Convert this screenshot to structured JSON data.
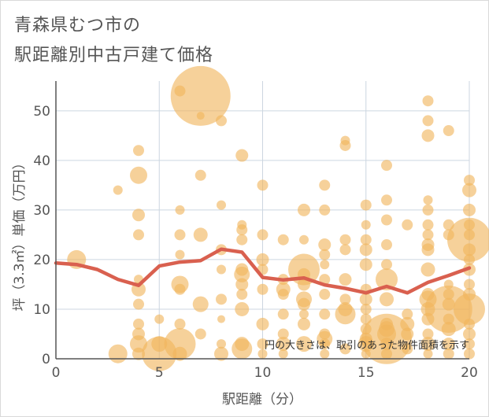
{
  "title_line1": "青森県むつ市の",
  "title_line2": "駅距離別中古戸建て価格",
  "note": "円の大きさは、取引のあった物件面積を示す",
  "colors": {
    "bubble": "#f0b45c",
    "line": "#d9604f",
    "grid": "#ccd6e0",
    "axis": "#555555"
  },
  "chart_data": {
    "type": "scatter",
    "xlabel": "駅距離（分）",
    "ylabel": "坪（3.3㎡）単価（万円）",
    "xlim": [
      0,
      20
    ],
    "ylim": [
      0,
      56
    ],
    "xticks": [
      0,
      5,
      10,
      15,
      20
    ],
    "yticks": [
      0,
      10,
      20,
      30,
      40,
      50
    ],
    "trend_line": {
      "x": [
        0,
        1,
        2,
        3,
        4,
        5,
        6,
        7,
        8,
        9,
        10,
        11,
        12,
        13,
        14,
        15,
        16,
        17,
        18,
        19,
        20
      ],
      "y": [
        19.3,
        19.0,
        18.0,
        16.0,
        14.8,
        18.7,
        19.5,
        19.8,
        22.1,
        21.5,
        16.4,
        15.9,
        16.3,
        14.9,
        14.2,
        13.3,
        14.6,
        13.3,
        15.4,
        16.8,
        18.3
      ]
    },
    "points": [
      [
        1,
        20,
        12
      ],
      [
        3,
        34,
        6
      ],
      [
        3,
        1,
        12
      ],
      [
        4,
        42,
        7
      ],
      [
        4,
        37,
        11
      ],
      [
        4,
        29,
        8
      ],
      [
        4,
        25,
        7
      ],
      [
        4,
        16,
        6
      ],
      [
        4,
        14,
        9
      ],
      [
        4,
        11,
        7
      ],
      [
        4,
        7,
        7
      ],
      [
        4,
        5,
        8
      ],
      [
        4,
        3,
        11
      ],
      [
        4,
        1,
        8
      ],
      [
        5,
        8,
        6
      ],
      [
        5,
        3,
        10
      ],
      [
        5,
        1,
        22
      ],
      [
        6,
        54,
        7
      ],
      [
        6,
        30,
        6
      ],
      [
        6,
        25,
        7
      ],
      [
        6,
        21,
        6
      ],
      [
        6,
        15,
        11
      ],
      [
        6,
        14,
        7
      ],
      [
        6,
        7,
        7
      ],
      [
        6,
        3,
        20
      ],
      [
        6,
        1,
        9
      ],
      [
        7,
        53,
        38
      ],
      [
        7,
        49,
        5
      ],
      [
        7,
        37,
        7
      ],
      [
        7,
        25,
        9
      ],
      [
        7,
        11,
        10
      ],
      [
        7,
        5,
        7
      ],
      [
        8,
        48,
        7
      ],
      [
        8,
        31,
        6
      ],
      [
        8,
        22,
        7
      ],
      [
        8,
        18,
        6
      ],
      [
        8,
        12,
        7
      ],
      [
        8,
        8,
        5
      ],
      [
        8,
        3,
        6
      ],
      [
        8,
        1,
        9
      ],
      [
        9,
        41,
        8
      ],
      [
        9,
        27,
        6
      ],
      [
        9,
        26,
        7
      ],
      [
        9,
        24,
        7
      ],
      [
        9,
        18,
        8
      ],
      [
        9,
        17,
        10
      ],
      [
        9,
        15,
        8
      ],
      [
        9,
        13,
        7
      ],
      [
        9,
        10,
        9
      ],
      [
        9,
        3,
        9
      ],
      [
        9,
        2,
        13
      ],
      [
        10,
        35,
        7
      ],
      [
        10,
        25,
        7
      ],
      [
        10,
        20,
        8
      ],
      [
        10,
        18,
        7
      ],
      [
        10,
        14,
        7
      ],
      [
        10,
        7,
        8
      ],
      [
        10,
        3,
        7
      ],
      [
        10,
        1,
        6
      ],
      [
        11,
        24,
        7
      ],
      [
        11,
        16,
        7
      ],
      [
        11,
        14,
        9
      ],
      [
        11,
        13,
        7
      ],
      [
        11,
        9,
        7
      ],
      [
        11,
        5,
        7
      ],
      [
        11,
        3,
        9
      ],
      [
        11,
        1,
        6
      ],
      [
        12,
        30,
        8
      ],
      [
        12,
        24,
        6
      ],
      [
        12,
        18,
        20
      ],
      [
        12,
        17,
        8
      ],
      [
        12,
        15,
        8
      ],
      [
        12,
        12,
        10
      ],
      [
        12,
        11,
        8
      ],
      [
        12,
        9,
        6
      ],
      [
        12,
        7,
        8
      ],
      [
        12,
        3,
        10
      ],
      [
        13,
        35,
        7
      ],
      [
        13,
        30,
        7
      ],
      [
        13,
        23,
        8
      ],
      [
        13,
        21,
        7
      ],
      [
        13,
        19,
        6
      ],
      [
        13,
        16,
        7
      ],
      [
        13,
        13,
        7
      ],
      [
        13,
        9,
        7
      ],
      [
        13,
        5,
        7
      ],
      [
        13,
        4,
        10
      ],
      [
        13,
        3,
        7
      ],
      [
        13,
        1,
        6
      ],
      [
        14,
        44,
        6
      ],
      [
        14,
        43,
        7
      ],
      [
        14,
        24,
        7
      ],
      [
        14,
        22,
        7
      ],
      [
        14,
        16,
        8
      ],
      [
        14,
        12,
        7
      ],
      [
        14,
        10,
        9
      ],
      [
        14,
        9,
        13
      ],
      [
        14,
        2,
        7
      ],
      [
        15,
        31,
        7
      ],
      [
        15,
        27,
        6
      ],
      [
        15,
        24,
        7
      ],
      [
        15,
        22,
        8
      ],
      [
        15,
        19,
        8
      ],
      [
        15,
        14,
        7
      ],
      [
        15,
        12,
        8
      ],
      [
        15,
        10,
        7
      ],
      [
        15,
        8,
        7
      ],
      [
        15,
        6,
        7
      ],
      [
        15,
        4,
        8
      ],
      [
        15,
        3,
        10
      ],
      [
        15,
        1,
        6
      ],
      [
        16,
        39,
        7
      ],
      [
        16,
        32,
        7
      ],
      [
        16,
        28,
        7
      ],
      [
        16,
        23,
        7
      ],
      [
        16,
        19,
        7
      ],
      [
        16,
        16,
        14
      ],
      [
        16,
        12,
        9
      ],
      [
        16,
        7,
        8
      ],
      [
        16,
        6,
        10
      ],
      [
        16,
        5,
        12
      ],
      [
        16,
        4,
        32
      ],
      [
        16,
        3,
        8
      ],
      [
        16,
        1,
        7
      ],
      [
        17,
        27,
        7
      ],
      [
        17,
        9,
        7
      ],
      [
        17,
        7,
        9
      ],
      [
        17,
        5,
        8
      ],
      [
        17,
        2,
        7
      ],
      [
        18,
        52,
        7
      ],
      [
        18,
        48,
        7
      ],
      [
        18,
        45,
        8
      ],
      [
        18,
        32,
        6
      ],
      [
        18,
        30,
        7
      ],
      [
        18,
        27,
        7
      ],
      [
        18,
        25,
        7
      ],
      [
        18,
        23,
        8
      ],
      [
        18,
        22,
        8
      ],
      [
        18,
        18,
        9
      ],
      [
        18,
        13,
        8
      ],
      [
        18,
        12,
        11
      ],
      [
        18,
        10,
        9
      ],
      [
        18,
        8,
        8
      ],
      [
        18,
        5,
        7
      ],
      [
        18,
        3,
        9
      ],
      [
        18,
        1,
        6
      ],
      [
        19,
        46,
        7
      ],
      [
        19,
        27,
        7
      ],
      [
        19,
        25,
        7
      ],
      [
        19,
        15,
        6
      ],
      [
        19,
        13,
        7
      ],
      [
        19,
        11,
        8
      ],
      [
        19,
        10,
        30
      ],
      [
        19,
        8,
        7
      ],
      [
        19,
        6,
        9
      ],
      [
        19,
        3,
        8
      ],
      [
        19,
        1,
        7
      ],
      [
        20,
        36,
        7
      ],
      [
        20,
        34,
        9
      ],
      [
        20,
        30,
        8
      ],
      [
        20,
        27,
        7
      ],
      [
        20,
        25,
        7
      ],
      [
        20,
        24,
        28
      ],
      [
        20,
        22,
        8
      ],
      [
        20,
        20,
        7
      ],
      [
        20,
        18,
        8
      ],
      [
        20,
        15,
        7
      ],
      [
        20,
        13,
        8
      ],
      [
        20,
        10,
        20
      ],
      [
        20,
        7,
        7
      ],
      [
        20,
        5,
        8
      ],
      [
        20,
        3,
        7
      ],
      [
        20,
        1,
        7
      ]
    ]
  }
}
